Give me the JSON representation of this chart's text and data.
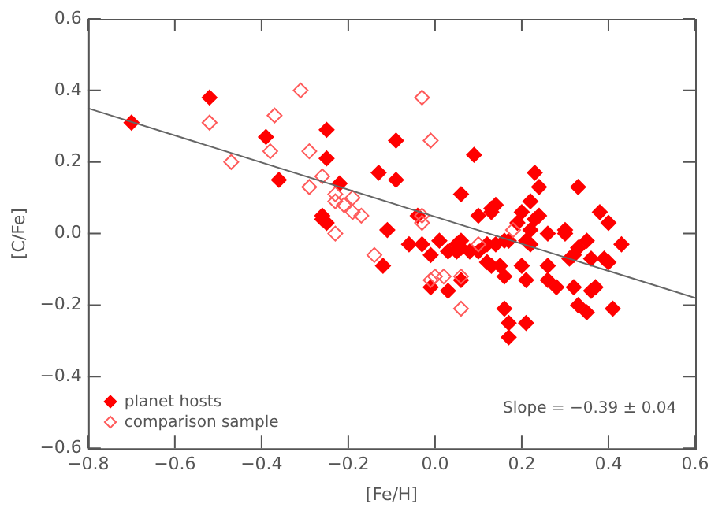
{
  "chart_data": {
    "type": "scatter",
    "xlabel": "[Fe/H]",
    "ylabel": "[C/Fe]",
    "xlim": [
      -0.8,
      0.6
    ],
    "ylim": [
      -0.6,
      0.6
    ],
    "xticks": [
      {
        "value": -0.8,
        "label": "−0.8"
      },
      {
        "value": -0.6,
        "label": "−0.6"
      },
      {
        "value": -0.4,
        "label": "−0.4"
      },
      {
        "value": -0.2,
        "label": "−0.2"
      },
      {
        "value": 0,
        "label": "0.0"
      },
      {
        "value": 0.2,
        "label": "0.2"
      },
      {
        "value": 0.4,
        "label": "0.4"
      },
      {
        "value": 0.6,
        "label": "0.6"
      }
    ],
    "yticks": [
      {
        "value": -0.6,
        "label": "−0.6"
      },
      {
        "value": -0.4,
        "label": "−0.4"
      },
      {
        "value": -0.2,
        "label": "−0.2"
      },
      {
        "value": 0,
        "label": "0.0"
      },
      {
        "value": 0.2,
        "label": "0.2"
      },
      {
        "value": 0.4,
        "label": "0.4"
      },
      {
        "value": 0.6,
        "label": "0.6"
      }
    ],
    "grid": false,
    "legend": "bottom left",
    "marker": "diamond",
    "annotations": [
      "Slope = −0.39 ± 0.04"
    ],
    "series": [
      {
        "name": "planet hosts",
        "color": "#ff0000",
        "x": [
          -0.7,
          -0.52,
          -0.39,
          -0.25,
          -0.25,
          -0.36,
          -0.22,
          -0.13,
          -0.09,
          -0.09,
          -0.26,
          -0.26,
          -0.25,
          -0.11,
          0.09,
          0.23,
          0.24,
          0.33,
          0.06,
          0.14,
          0.13,
          0.1,
          0.22,
          0.2,
          0.38,
          0.4,
          -0.04,
          0.19,
          0.22,
          0.23,
          0.24,
          0.3,
          0.3,
          0.26,
          0.35,
          0.43,
          0.01,
          -0.06,
          -0.03,
          0.17,
          0.16,
          -0.12,
          -0.01,
          0.03,
          0.05,
          0.06,
          0.08,
          0.1,
          0.05,
          0.06,
          0.12,
          0.14,
          0.12,
          0.13,
          0.15,
          0.16,
          0.2,
          0.21,
          0.22,
          0.21,
          0.26,
          0.26,
          0.28,
          0.32,
          0.33,
          0.31,
          0.36,
          0.39,
          0.4,
          0.32,
          0.37,
          0.36,
          0.33,
          0.35,
          0.41,
          0.16,
          0.17,
          0.21,
          0.17,
          -0.01,
          0.03,
          0.06,
          0.13
        ],
        "values": [
          0.31,
          0.38,
          0.27,
          0.29,
          0.21,
          0.15,
          0.14,
          0.17,
          0.26,
          0.15,
          0.05,
          0.04,
          0.03,
          0.01,
          0.22,
          0.17,
          0.13,
          0.13,
          0.11,
          0.08,
          0.06,
          0.05,
          0.09,
          0.06,
          0.06,
          0.03,
          0.05,
          0.03,
          0.01,
          0.04,
          0.05,
          0.01,
          0.0,
          0.0,
          -0.02,
          -0.03,
          -0.02,
          -0.03,
          -0.03,
          -0.02,
          -0.02,
          -0.09,
          -0.06,
          -0.05,
          -0.05,
          -0.04,
          -0.05,
          -0.05,
          -0.03,
          -0.02,
          -0.03,
          -0.03,
          -0.08,
          -0.09,
          -0.09,
          -0.12,
          -0.09,
          -0.13,
          -0.03,
          -0.02,
          -0.09,
          -0.13,
          -0.15,
          -0.06,
          -0.04,
          -0.07,
          -0.07,
          -0.07,
          -0.08,
          -0.15,
          -0.15,
          -0.16,
          -0.2,
          -0.22,
          -0.21,
          -0.21,
          -0.25,
          -0.25,
          -0.29,
          -0.15,
          -0.16,
          -0.13,
          0.07
        ]
      },
      {
        "name": "comparison sample",
        "color": "#ff5a5a",
        "marker": "diamond-open",
        "x": [
          -0.52,
          -0.37,
          -0.31,
          -0.38,
          -0.29,
          -0.47,
          -0.26,
          -0.29,
          -0.23,
          -0.19,
          -0.23,
          -0.21,
          -0.19,
          -0.17,
          -0.23,
          -0.14,
          -0.03,
          -0.01,
          -0.03,
          -0.03,
          0.18,
          0.0,
          0.02,
          0.06,
          -0.01,
          0.06,
          0.1
        ],
        "values": [
          0.31,
          0.33,
          0.4,
          0.23,
          0.23,
          0.2,
          0.16,
          0.13,
          0.11,
          0.1,
          0.09,
          0.08,
          0.06,
          0.05,
          0.0,
          -0.06,
          0.38,
          0.26,
          0.05,
          0.03,
          0.01,
          -0.12,
          -0.12,
          -0.12,
          -0.13,
          -0.21,
          -0.03
        ]
      },
      {
        "type": "line",
        "color": "#666666",
        "marker": "none",
        "x": [
          -0.8,
          0.6
        ],
        "values": [
          0.35,
          -0.18
        ]
      }
    ]
  }
}
